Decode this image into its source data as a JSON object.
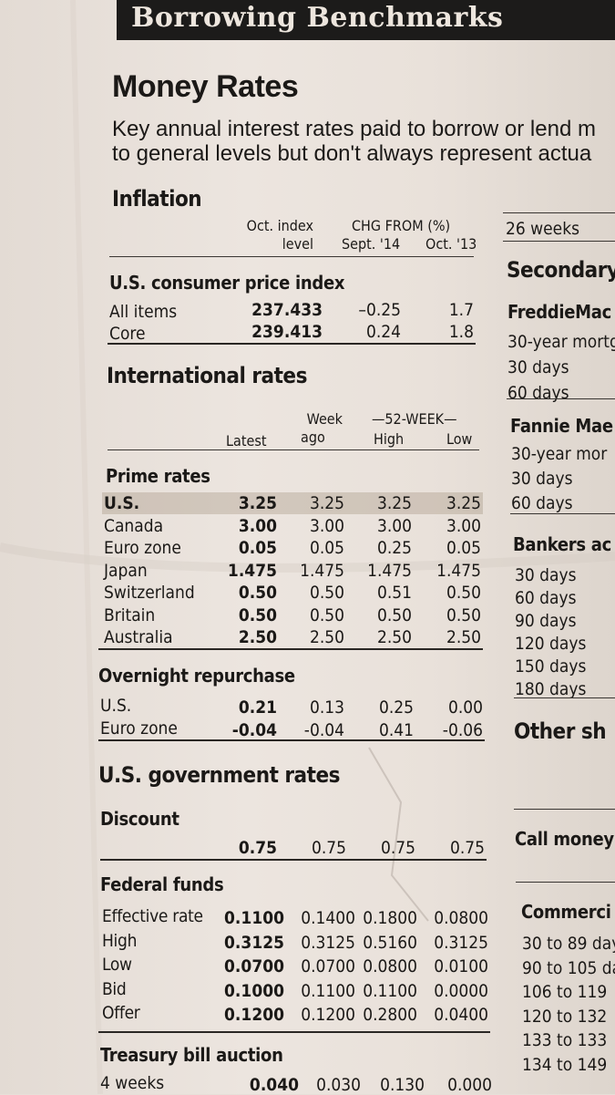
{
  "banner": "Borrowing Benchmarks",
  "title": "Money Rates",
  "intro": [
    "Key annual interest rates paid to borrow or lend m",
    "to general levels but don't always represent actua"
  ],
  "inflation": {
    "heading": "Inflation",
    "col_level": [
      "Oct. index",
      "level"
    ],
    "col_chg": "CHG FROM (%)",
    "col_sept": "Sept. '14",
    "col_oct": "Oct. '13",
    "subhead": "U.S. consumer price index",
    "rows": [
      {
        "label": "All items",
        "level": "237.433",
        "sept": "–0.25",
        "oct": "1.7"
      },
      {
        "label": "Core",
        "level": "239.413",
        "sept": "0.24",
        "oct": "1.8"
      }
    ]
  },
  "international": {
    "heading": "International rates",
    "cols": {
      "latest": "Latest",
      "week": [
        "Week",
        "ago"
      ],
      "wk52": "—52-WEEK—",
      "high": "High",
      "low": "Low"
    },
    "prime": {
      "subhead": "Prime rates",
      "rows": [
        {
          "label": "U.S.",
          "latest": "3.25",
          "week": "3.25",
          "high": "3.25",
          "low": "3.25"
        },
        {
          "label": "Canada",
          "latest": "3.00",
          "week": "3.00",
          "high": "3.00",
          "low": "3.00"
        },
        {
          "label": "Euro zone",
          "latest": "0.05",
          "week": "0.05",
          "high": "0.25",
          "low": "0.05"
        },
        {
          "label": "Japan",
          "latest": "1.475",
          "week": "1.475",
          "high": "1.475",
          "low": "1.475"
        },
        {
          "label": "Switzerland",
          "latest": "0.50",
          "week": "0.50",
          "high": "0.51",
          "low": "0.50"
        },
        {
          "label": "Britain",
          "latest": "0.50",
          "week": "0.50",
          "high": "0.50",
          "low": "0.50"
        },
        {
          "label": "Australia",
          "latest": "2.50",
          "week": "2.50",
          "high": "2.50",
          "low": "2.50"
        }
      ]
    },
    "overnight": {
      "subhead": "Overnight repurchase",
      "rows": [
        {
          "label": "U.S.",
          "latest": "0.21",
          "week": "0.13",
          "high": "0.25",
          "low": "0.00"
        },
        {
          "label": "Euro zone",
          "latest": "-0.04",
          "week": "-0.04",
          "high": "0.41",
          "low": "-0.06"
        }
      ]
    }
  },
  "government": {
    "heading": "U.S. government rates",
    "discount": {
      "subhead": "Discount",
      "latest": "0.75",
      "week": "0.75",
      "high": "0.75",
      "low": "0.75"
    },
    "fedfunds": {
      "subhead": "Federal funds",
      "rows": [
        {
          "label": "Effective rate",
          "latest": "0.1100",
          "week": "0.1400",
          "high": "0.1800",
          "low": "0.0800"
        },
        {
          "label": "High",
          "latest": "0.3125",
          "week": "0.3125",
          "high": "0.5160",
          "low": "0.3125"
        },
        {
          "label": "Low",
          "latest": "0.0700",
          "week": "0.0700",
          "high": "0.0800",
          "low": "0.0100"
        },
        {
          "label": "Bid",
          "latest": "0.1000",
          "week": "0.1100",
          "high": "0.1100",
          "low": "0.0000"
        },
        {
          "label": "Offer",
          "latest": "0.1200",
          "week": "0.1200",
          "high": "0.2800",
          "low": "0.0400"
        }
      ]
    },
    "tbill": {
      "subhead": "Treasury bill auction",
      "row": {
        "label": "4 weeks",
        "latest": "0.040",
        "week": "0.030",
        "high": "0.130",
        "low": "0.000"
      }
    }
  },
  "right_column": {
    "weeks26": "26 weeks",
    "secondary": "Secondary",
    "freddie": "FreddieMac",
    "freddie_rows": [
      "30-year mortg",
      "30 days",
      "60 days"
    ],
    "fannie": "Fannie Mae",
    "fannie_rows": [
      "30-year mor",
      "30 days",
      "60 days"
    ],
    "bankers": "Bankers ac",
    "bankers_rows": [
      "30 days",
      "60 days",
      "90 days",
      "120 days",
      "150 days",
      "180 days"
    ],
    "other": "Other sh",
    "call": "Call money",
    "commercial": "Commerci",
    "commercial_rows": [
      "30 to 89 day",
      "90 to 105 da",
      "106 to 119",
      "120 to 132",
      "133 to 133",
      "134 to 149"
    ]
  }
}
